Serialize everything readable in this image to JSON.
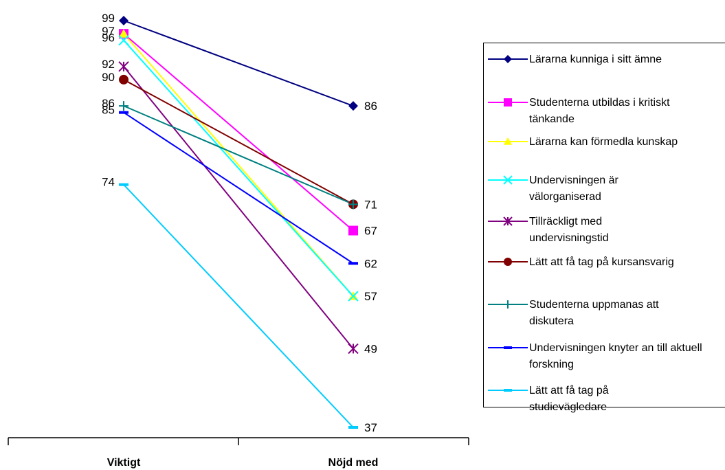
{
  "chart_data": {
    "type": "line",
    "categories": [
      "Viktigt",
      "Nöjd med"
    ],
    "ylim": [
      30,
      100
    ],
    "grid": false,
    "legend_position": "right",
    "series": [
      {
        "name": "Lärarna kunniga i sitt ämne",
        "values": [
          99,
          86
        ],
        "color": "#000080",
        "marker": "diamond"
      },
      {
        "name": "Studenterna utbildas i kritiskt tänkande",
        "values": [
          97,
          67
        ],
        "color": "#FF00FF",
        "marker": "square"
      },
      {
        "name": "Lärarna kan förmedla kunskap",
        "values": [
          97,
          57
        ],
        "color": "#FFFF00",
        "marker": "triangle"
      },
      {
        "name": "Undervisningen är välorganiserad",
        "values": [
          96,
          57
        ],
        "color": "#00FFFF",
        "marker": "x"
      },
      {
        "name": "Tillräckligt med undervisningstid",
        "values": [
          92,
          49
        ],
        "color": "#800080",
        "marker": "star"
      },
      {
        "name": "Lätt att få tag på kursansvarig",
        "values": [
          90,
          71
        ],
        "color": "#800000",
        "marker": "circle"
      },
      {
        "name": "Studenterna uppmanas att diskutera",
        "values": [
          86,
          71
        ],
        "color": "#008080",
        "marker": "plus"
      },
      {
        "name": "Undervisningen knyter an till aktuell forskning",
        "values": [
          85,
          62
        ],
        "color": "#0000FF",
        "marker": "dash"
      },
      {
        "name": "Lätt att få tag på studievägledare",
        "values": [
          74,
          37
        ],
        "color": "#00CCFF",
        "marker": "dash"
      }
    ],
    "point_labels_left": [
      "99",
      "97",
      "96",
      "92",
      "90",
      "86",
      "85",
      "74"
    ],
    "point_labels_right": [
      "86",
      "71",
      "67",
      "62",
      "57",
      "49",
      "37"
    ]
  }
}
